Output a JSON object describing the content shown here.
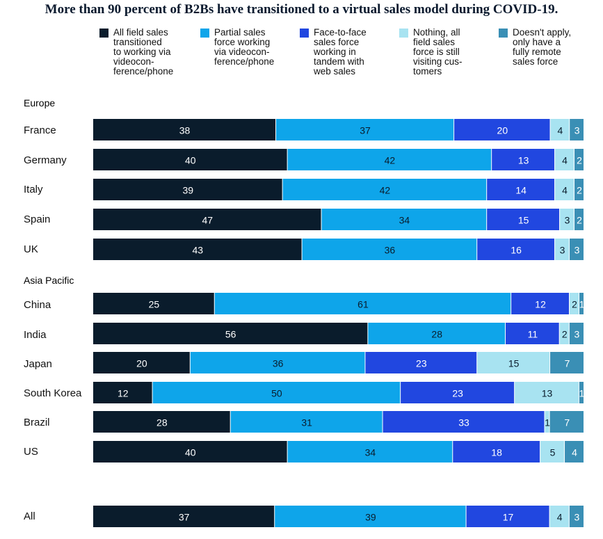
{
  "title": "More than 90 percent of B2Bs have transitioned to a virtual sales model during COVID-19.",
  "chart_data": {
    "type": "bar",
    "orientation": "horizontal",
    "stacked": true,
    "series": [
      {
        "name": "All field sales transitioned to working via videoconference/phone",
        "color": "#0a1c2c",
        "text_color": "#ffffff"
      },
      {
        "name": "Partial sales force working via videoconference/phone",
        "color": "#0ea5ea",
        "text_color": "#0a1c2c"
      },
      {
        "name": "Face-to-face sales force working in tandem with web sales",
        "color": "#2147e0",
        "text_color": "#ffffff"
      },
      {
        "name": "Nothing, all field sales force is still visiting customers",
        "color": "#a8e3f1",
        "text_color": "#0a1c2c"
      },
      {
        "name": "Doesn't apply, only have a fully remote sales force",
        "color": "#3a8fb5",
        "text_color": "#ffffff"
      }
    ],
    "groups": [
      {
        "name": "Europe",
        "rows": [
          {
            "label": "France",
            "values": [
              38,
              37,
              20,
              4,
              3
            ]
          },
          {
            "label": "Germany",
            "values": [
              40,
              42,
              13,
              4,
              2
            ]
          },
          {
            "label": "Italy",
            "values": [
              39,
              42,
              14,
              4,
              2
            ]
          },
          {
            "label": "Spain",
            "values": [
              47,
              34,
              15,
              3,
              2
            ]
          },
          {
            "label": "UK",
            "values": [
              43,
              36,
              16,
              3,
              3
            ]
          }
        ]
      },
      {
        "name": "Asia Pacific",
        "rows": [
          {
            "label": "China",
            "values": [
              25,
              61,
              12,
              2,
              1
            ]
          },
          {
            "label": "India",
            "values": [
              56,
              28,
              11,
              2,
              3
            ]
          },
          {
            "label": "Japan",
            "values": [
              20,
              36,
              23,
              15,
              7
            ]
          },
          {
            "label": "South Korea",
            "values": [
              12,
              50,
              23,
              13,
              1
            ]
          },
          {
            "label": "Brazil",
            "values": [
              28,
              31,
              33,
              1,
              7
            ]
          },
          {
            "label": "US",
            "values": [
              40,
              34,
              18,
              5,
              4
            ]
          }
        ]
      },
      {
        "name": "",
        "rows": [
          {
            "label": "All",
            "values": [
              37,
              39,
              17,
              4,
              3
            ]
          }
        ]
      }
    ]
  },
  "legend": [
    {
      "text": "All field sales\ntransitioned\nto working via\nvideocon-\nference/phone"
    },
    {
      "text": "Partial sales\nforce working\nvia videocon-\nference/phone"
    },
    {
      "text": "Face-to-face\nsales force\nworking in\ntandem with\nweb sales"
    },
    {
      "text": "Nothing, all\nfield sales\nforce is still\nvisiting cus-\ntomers"
    },
    {
      "text": "Doesn't apply,\nonly have a\nfully remote\nsales force"
    }
  ]
}
